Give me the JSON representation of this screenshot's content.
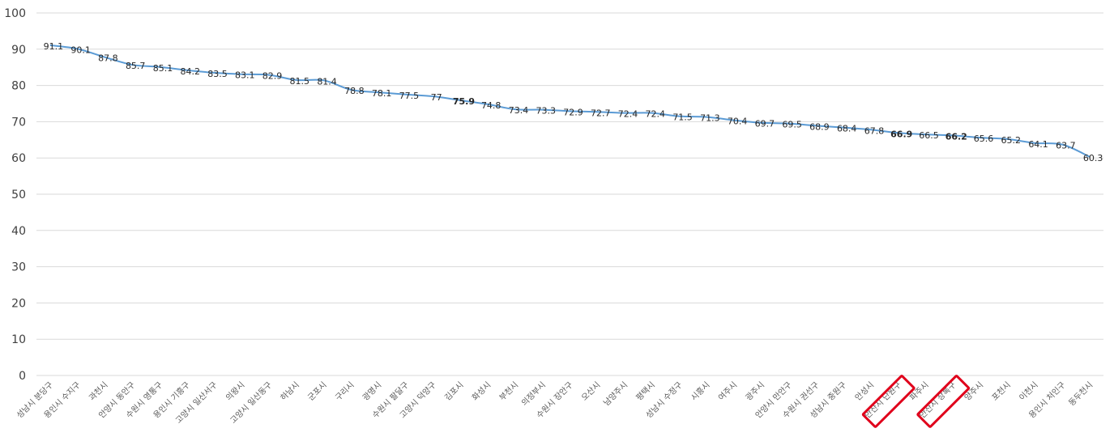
{
  "chart_data": {
    "type": "line",
    "ylim": [
      0,
      100
    ],
    "yticks": [
      0,
      10,
      20,
      30,
      40,
      50,
      60,
      70,
      80,
      90,
      100
    ],
    "grid": true,
    "legend": "none",
    "line_color": "#5B9BD5",
    "gridline_color": "#D9D9D9",
    "highlight_color": "#E0001B",
    "categories": [
      "성남시 분당구",
      "용인시 수지구",
      "과천시",
      "안양시 동안구",
      "수원시 영통구",
      "용인시 기흥구",
      "고양시 일산서구",
      "의왕시",
      "고양시 일산동구",
      "하남시",
      "군포시",
      "구리시",
      "광명시",
      "수원시 팔달구",
      "고양시 덕양구",
      "김포시",
      "화성시",
      "부천시",
      "의정부시",
      "수원시 장안구",
      "오산시",
      "남양주시",
      "평택시",
      "성남시 수정구",
      "시흥시",
      "여주시",
      "광주시",
      "안양시 만안구",
      "수원시 권선구",
      "성남시 중원구",
      "안성시",
      "안산시 단원구",
      "파주시",
      "안산시 상록구",
      "양주시",
      "포천시",
      "이천시",
      "용인시 처인구",
      "동두천시"
    ],
    "values": [
      91.1,
      90.1,
      87.8,
      85.7,
      85.1,
      84.2,
      83.5,
      83.1,
      82.9,
      81.5,
      81.4,
      78.8,
      78.1,
      77.5,
      77,
      75.9,
      74.8,
      73.4,
      73.3,
      72.9,
      72.7,
      72.4,
      72.4,
      71.5,
      71.3,
      70.4,
      69.7,
      69.5,
      68.9,
      68.4,
      67.8,
      66.9,
      66.5,
      66.2,
      65.6,
      65.2,
      64.1,
      63.7,
      60.3
    ],
    "labels": [
      "91.1",
      "90.1",
      "87.8",
      "85.7",
      "85.1",
      "84.2",
      "83.5",
      "83.1",
      "82.9",
      "81.5",
      "81.4",
      "78.8",
      "78.1",
      "77.5",
      "77",
      "75.9",
      "74.8",
      "73.4",
      "73.3",
      "72.9",
      "72.7",
      "72.4",
      "72.4",
      "71.5",
      "71.3",
      "70.4",
      "69.7",
      "69.5",
      "68.9",
      "68.4",
      "67.8",
      "66.9",
      "66.5",
      "66.2",
      "65.6",
      "65.2",
      "64.1",
      "63.7",
      "60.3"
    ],
    "bold_label_indices": [
      15
    ],
    "red_bold_label_indices": [
      31,
      33
    ],
    "boxed_category_indices": [
      31,
      33
    ]
  }
}
